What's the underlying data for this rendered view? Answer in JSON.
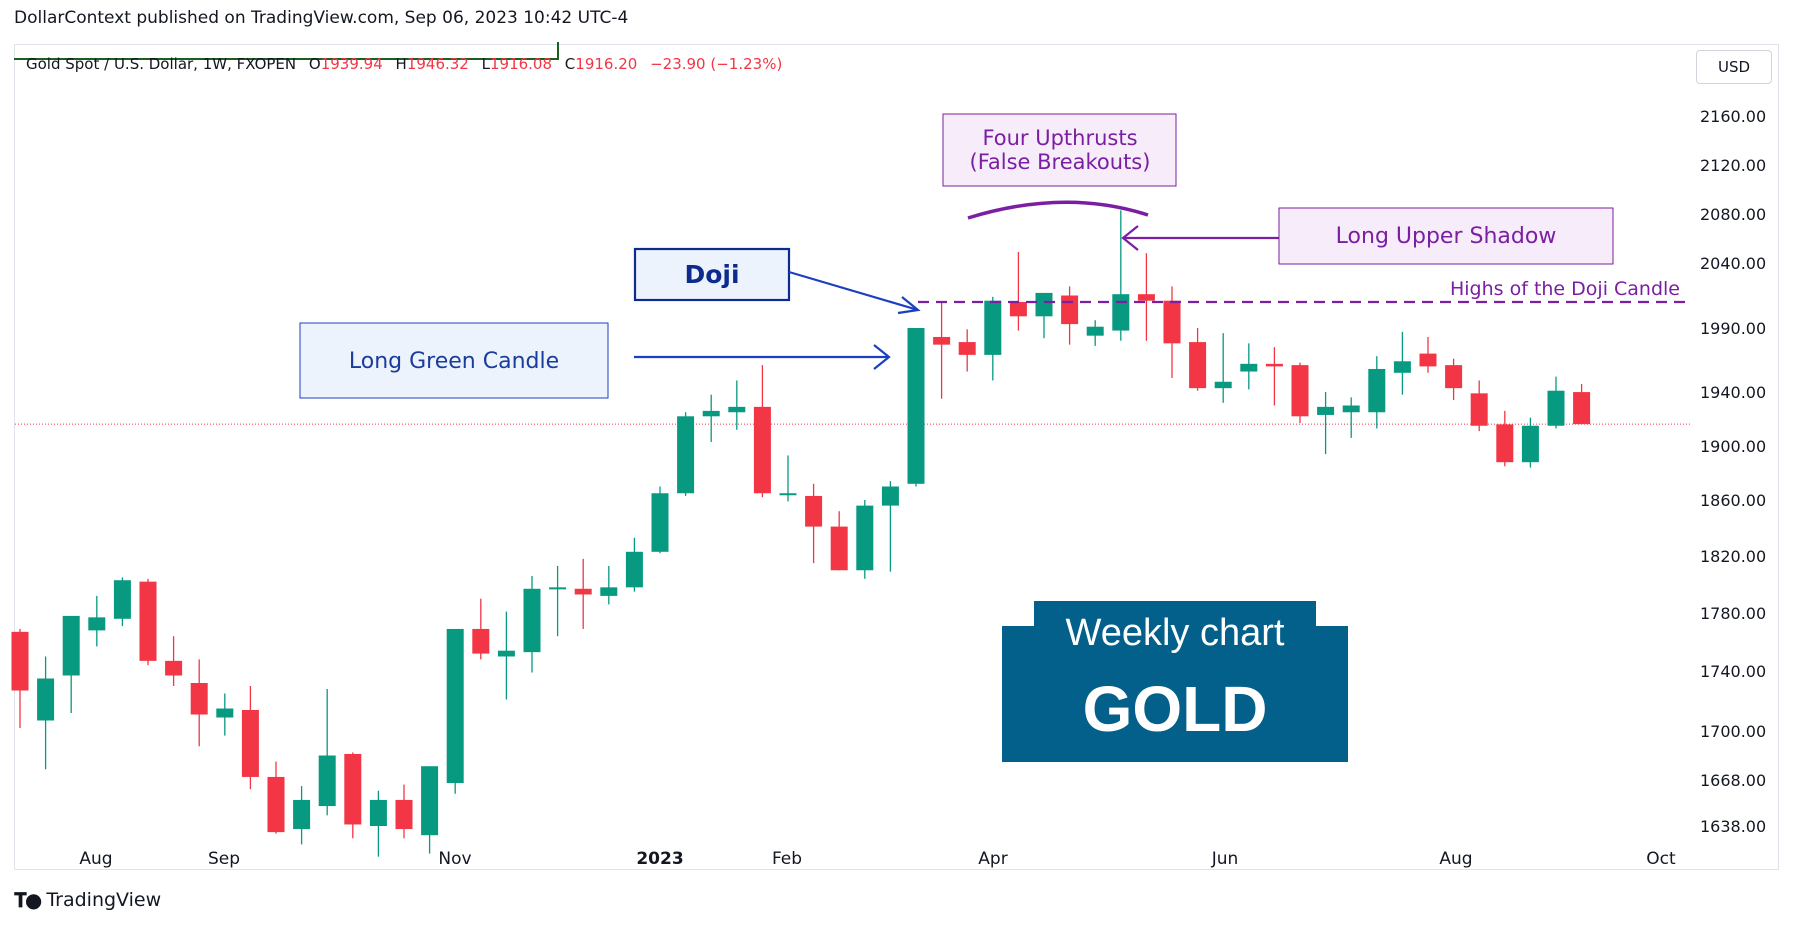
{
  "header": {
    "publisher_line": "DollarContext published on TradingView.com, Sep 06, 2023 10:42 UTC-4"
  },
  "legend": {
    "symbol": "Gold Spot / U.S. Dollar, 1W, FXOPEN",
    "o_label": "O",
    "o_value": "1939.94",
    "h_label": "H",
    "h_value": "1946.32",
    "l_label": "L",
    "l_value": "1916.08",
    "c_label": "C",
    "c_value": "1916.20",
    "change": "−23.90 (−1.23%)"
  },
  "currency_button": "USD",
  "footer": {
    "logo_text": "TradingView"
  },
  "colors": {
    "up": "#089981",
    "down": "#f23645",
    "annotation_blue": "#1c3fbf",
    "annotation_purple": "#7b1fa2",
    "gold_box": "#03608b"
  },
  "chart_data": {
    "type": "candlestick",
    "y_ticks": [
      "2160.00",
      "2120.00",
      "2080.00",
      "2040.00",
      "1990.00",
      "1940.00",
      "1900.00",
      "1860.00",
      "1820.00",
      "1780.00",
      "1740.00",
      "1700.00",
      "1668.00",
      "1638.00"
    ],
    "x_ticks": [
      "Aug",
      "Sep",
      "Nov",
      "2023",
      "Feb",
      "Apr",
      "Jun",
      "Aug",
      "Oct"
    ],
    "last_price": 1916.2,
    "candles": [
      {
        "o": 1767,
        "h": 1769,
        "l": 1702,
        "c": 1727
      },
      {
        "o": 1707,
        "h": 1750,
        "l": 1675,
        "c": 1735
      },
      {
        "o": 1737,
        "h": 1777,
        "l": 1712,
        "c": 1778
      },
      {
        "o": 1768,
        "h": 1792,
        "l": 1757,
        "c": 1777
      },
      {
        "o": 1776,
        "h": 1805,
        "l": 1771,
        "c": 1803
      },
      {
        "o": 1802,
        "h": 1804,
        "l": 1744,
        "c": 1747
      },
      {
        "o": 1747,
        "h": 1764,
        "l": 1730,
        "c": 1737
      },
      {
        "o": 1732,
        "h": 1748,
        "l": 1690,
        "c": 1711
      },
      {
        "o": 1709,
        "h": 1725,
        "l": 1697,
        "c": 1715
      },
      {
        "o": 1714,
        "h": 1730,
        "l": 1662,
        "c": 1670
      },
      {
        "o": 1670,
        "h": 1680,
        "l": 1633,
        "c": 1634
      },
      {
        "o": 1636,
        "h": 1664,
        "l": 1626,
        "c": 1655
      },
      {
        "o": 1651,
        "h": 1728,
        "l": 1645,
        "c": 1684
      },
      {
        "o": 1685,
        "h": 1686,
        "l": 1630,
        "c": 1639
      },
      {
        "o": 1638,
        "h": 1661,
        "l": 1618,
        "c": 1655
      },
      {
        "o": 1655,
        "h": 1665,
        "l": 1630,
        "c": 1636
      },
      {
        "o": 1632,
        "h": 1676,
        "l": 1620,
        "c": 1677
      },
      {
        "o": 1666,
        "h": 1765,
        "l": 1659,
        "c": 1769
      },
      {
        "o": 1769,
        "h": 1790,
        "l": 1748,
        "c": 1752
      },
      {
        "o": 1750,
        "h": 1781,
        "l": 1721,
        "c": 1754
      },
      {
        "o": 1753,
        "h": 1806,
        "l": 1739,
        "c": 1797
      },
      {
        "o": 1797,
        "h": 1813,
        "l": 1764,
        "c": 1798
      },
      {
        "o": 1797,
        "h": 1818,
        "l": 1769,
        "c": 1793
      },
      {
        "o": 1792,
        "h": 1813,
        "l": 1786,
        "c": 1798
      },
      {
        "o": 1798,
        "h": 1833,
        "l": 1795,
        "c": 1823
      },
      {
        "o": 1823,
        "h": 1870,
        "l": 1822,
        "c": 1865
      },
      {
        "o": 1865,
        "h": 1925,
        "l": 1863,
        "c": 1922
      },
      {
        "o": 1922,
        "h": 1938,
        "l": 1903,
        "c": 1926
      },
      {
        "o": 1925,
        "h": 1949,
        "l": 1912,
        "c": 1929
      },
      {
        "o": 1929,
        "h": 1961,
        "l": 1862,
        "c": 1865
      },
      {
        "o": 1865,
        "h": 1893,
        "l": 1859,
        "c": 1865
      },
      {
        "o": 1863,
        "h": 1872,
        "l": 1815,
        "c": 1841
      },
      {
        "o": 1841,
        "h": 1852,
        "l": 1810,
        "c": 1810
      },
      {
        "o": 1810,
        "h": 1860,
        "l": 1804,
        "c": 1856
      },
      {
        "o": 1856,
        "h": 1874,
        "l": 1809,
        "c": 1870
      },
      {
        "o": 1872,
        "h": 1990,
        "l": 1870,
        "c": 1990
      },
      {
        "o": 1983,
        "h": 2010,
        "l": 1935,
        "c": 1977
      },
      {
        "o": 1979,
        "h": 1989,
        "l": 1956,
        "c": 1969
      },
      {
        "o": 1969,
        "h": 2014,
        "l": 1949,
        "c": 2011
      },
      {
        "o": 2010,
        "h": 2049,
        "l": 1988,
        "c": 1999
      },
      {
        "o": 1999,
        "h": 2016,
        "l": 1982,
        "c": 2017
      },
      {
        "o": 2015,
        "h": 2022,
        "l": 1977,
        "c": 1993
      },
      {
        "o": 1984,
        "h": 1996,
        "l": 1976,
        "c": 1991
      },
      {
        "o": 1988,
        "h": 2083,
        "l": 1980,
        "c": 2016
      },
      {
        "o": 2016,
        "h": 2048,
        "l": 1980,
        "c": 2011
      },
      {
        "o": 2011,
        "h": 2022,
        "l": 1951,
        "c": 1978
      },
      {
        "o": 1979,
        "h": 1990,
        "l": 1941,
        "c": 1943
      },
      {
        "o": 1943,
        "h": 1986,
        "l": 1932,
        "c": 1948
      },
      {
        "o": 1956,
        "h": 1978,
        "l": 1942,
        "c": 1962
      },
      {
        "o": 1962,
        "h": 1975,
        "l": 1930,
        "c": 1960
      },
      {
        "o": 1961,
        "h": 1963,
        "l": 1917,
        "c": 1922
      },
      {
        "o": 1923,
        "h": 1940,
        "l": 1894,
        "c": 1929
      },
      {
        "o": 1925,
        "h": 1936,
        "l": 1906,
        "c": 1930
      },
      {
        "o": 1925,
        "h": 1968,
        "l": 1913,
        "c": 1958
      },
      {
        "o": 1955,
        "h": 1987,
        "l": 1938,
        "c": 1964
      },
      {
        "o": 1970,
        "h": 1983,
        "l": 1955,
        "c": 1960
      },
      {
        "o": 1961,
        "h": 1966,
        "l": 1934,
        "c": 1943
      },
      {
        "o": 1939,
        "h": 1949,
        "l": 1911,
        "c": 1915
      },
      {
        "o": 1916,
        "h": 1926,
        "l": 1885,
        "c": 1888
      },
      {
        "o": 1888,
        "h": 1921,
        "l": 1884,
        "c": 1915
      },
      {
        "o": 1915,
        "h": 1952,
        "l": 1913,
        "c": 1941
      },
      {
        "o": 1939.94,
        "h": 1946.32,
        "l": 1916.08,
        "c": 1916.2
      }
    ],
    "annotations": {
      "doji": "Doji",
      "long_green_candle": "Long Green Candle",
      "four_upthrusts_line1": "Four Upthrusts",
      "four_upthrusts_line2": "(False Breakouts)",
      "long_upper_shadow": "Long Upper Shadow",
      "doji_highs": "Highs of the Doji Candle",
      "doji_highs_level": 2010,
      "weekly_chart": "Weekly chart",
      "gold": "GOLD"
    }
  }
}
